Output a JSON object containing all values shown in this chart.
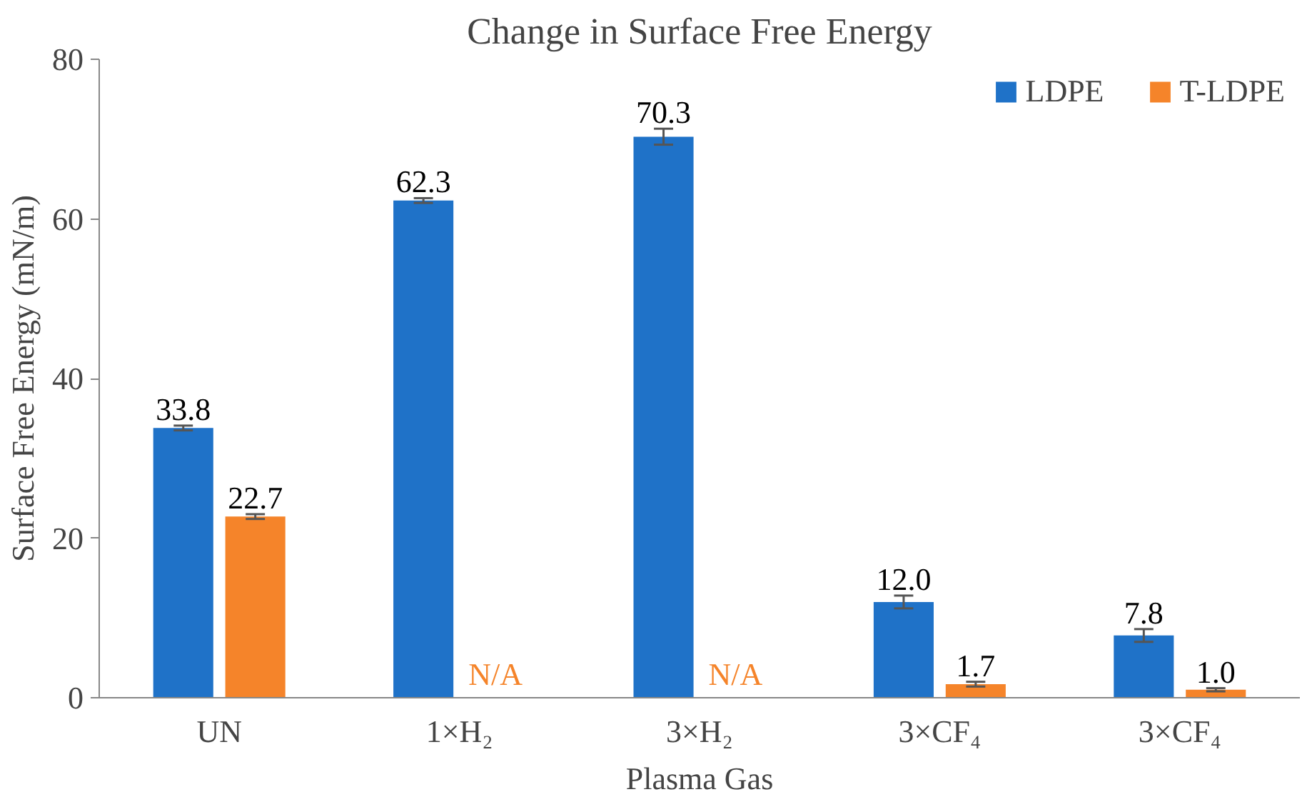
{
  "chart_data": {
    "type": "bar",
    "title": "Change in Surface Free Energy",
    "xlabel": "Plasma Gas",
    "ylabel": "Surface Free Energy (mN/m)",
    "categories": [
      "UN",
      "1×H₂",
      "3×H₂",
      "3×CF₄",
      "3×CF₄"
    ],
    "series": [
      {
        "name": "LDPE",
        "color": "#1f72c8",
        "values": [
          33.8,
          62.3,
          70.3,
          12.0,
          7.8
        ],
        "errors": [
          0.3,
          0.3,
          1.0,
          0.8,
          0.8
        ],
        "value_labels": [
          "33.8",
          "62.3",
          "70.3",
          "12.0",
          "7.8"
        ]
      },
      {
        "name": "T-LDPE",
        "color": "#f5842a",
        "values": [
          22.7,
          null,
          null,
          1.7,
          1.0
        ],
        "errors": [
          0.3,
          null,
          null,
          0.3,
          0.2
        ],
        "value_labels": [
          "22.7",
          "N/A",
          "N/A",
          "1.7",
          "1.0"
        ]
      }
    ],
    "ylim": [
      0,
      80
    ],
    "yticks": [
      0,
      20,
      40,
      60,
      80
    ],
    "legend": "top right"
  }
}
